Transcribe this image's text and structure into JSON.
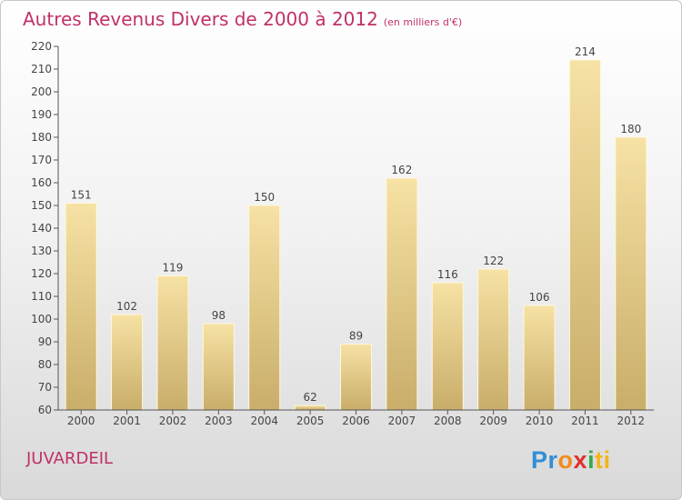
{
  "title": "Autres Revenus Divers de 2000 à 2012",
  "subtitle": "(en milliers d'€)",
  "commune": "JUVARDEIL",
  "logo": {
    "p": "Pr",
    "o": "o",
    "x": "x",
    "i": "i",
    "ti": "ti"
  },
  "colors": {
    "title": "#c0306a",
    "bar_light": "#f6e2a4",
    "bar_dark": "#c9ad6a",
    "axis": "#555555"
  },
  "chart_data": {
    "type": "bar",
    "categories": [
      "2000",
      "2001",
      "2002",
      "2003",
      "2004",
      "2005",
      "2006",
      "2007",
      "2008",
      "2009",
      "2010",
      "2011",
      "2012"
    ],
    "values": [
      151,
      102,
      119,
      98,
      150,
      62,
      89,
      162,
      116,
      122,
      106,
      214,
      180
    ],
    "ylim": [
      60,
      220
    ],
    "yticks": [
      60,
      70,
      80,
      90,
      100,
      110,
      120,
      130,
      140,
      150,
      160,
      170,
      180,
      190,
      200,
      210,
      220
    ],
    "grid": false,
    "title": "Autres Revenus Divers de 2000 à 2012",
    "xlabel": "",
    "ylabel": ""
  }
}
